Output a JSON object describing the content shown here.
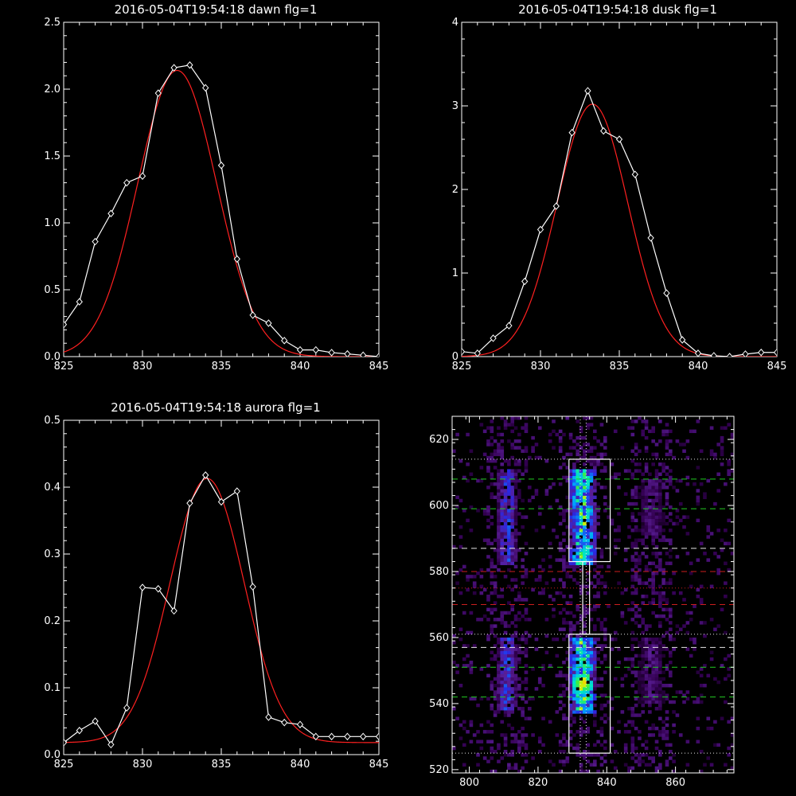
{
  "colors": {
    "background": "#000000",
    "axis": "#ffffff",
    "data": "#ffffff",
    "fit": "#ff2020",
    "green": "#22cc22",
    "red": "#cc1e1e",
    "dotted": "#e6e6e6"
  },
  "chart_data": [
    {
      "type": "line",
      "title": "2016-05-04T19:54:18 dawn flg=1",
      "xlim": [
        825,
        845
      ],
      "ylim": [
        0,
        2.5
      ],
      "xticks": [
        825,
        830,
        835,
        840,
        845
      ],
      "yticks": [
        0.0,
        0.5,
        1.0,
        1.5,
        2.0,
        2.5
      ],
      "ytick_labels": [
        "0.0",
        "0.5",
        "1.0",
        "1.5",
        "2.0",
        "2.5"
      ],
      "series": [
        {
          "role": "measured",
          "style": "white line with diamonds",
          "x": [
            825,
            826,
            827,
            828,
            829,
            830,
            831,
            832,
            833,
            834,
            835,
            836,
            837,
            838,
            839,
            840,
            841,
            842,
            843,
            844,
            845
          ],
          "y": [
            0.24,
            0.41,
            0.86,
            1.07,
            1.3,
            1.35,
            1.97,
            2.16,
            2.18,
            2.01,
            1.43,
            0.73,
            0.31,
            0.25,
            0.12,
            0.05,
            0.05,
            0.03,
            0.02,
            0.01,
            0.0
          ]
        },
        {
          "role": "fit",
          "style": "red gaussian",
          "amplitude": 2.14,
          "center": 832.2,
          "sigma": 2.5
        }
      ]
    },
    {
      "type": "line",
      "title": "2016-05-04T19:54:18 dusk flg=1",
      "xlim": [
        825,
        845
      ],
      "ylim": [
        0,
        4
      ],
      "xticks": [
        825,
        830,
        835,
        840,
        845
      ],
      "yticks": [
        0,
        1,
        2,
        3,
        4
      ],
      "ytick_labels": [
        "0",
        "1",
        "2",
        "3",
        "4"
      ],
      "series": [
        {
          "role": "measured",
          "style": "white line with diamonds",
          "x": [
            825,
            826,
            827,
            828,
            829,
            830,
            831,
            832,
            833,
            834,
            835,
            836,
            837,
            838,
            839,
            840,
            841,
            842,
            843,
            844,
            845
          ],
          "y": [
            0.06,
            0.04,
            0.22,
            0.37,
            0.9,
            1.52,
            1.8,
            2.68,
            3.18,
            2.7,
            2.6,
            2.18,
            1.42,
            0.76,
            0.2,
            0.04,
            0.01,
            0.0,
            0.03,
            0.05,
            0.05
          ]
        },
        {
          "role": "fit",
          "style": "red gaussian",
          "amplitude": 3.02,
          "center": 833.3,
          "sigma": 2.25
        }
      ]
    },
    {
      "type": "line",
      "title": "2016-05-04T19:54:18 aurora flg=1",
      "xlim": [
        825,
        845
      ],
      "ylim": [
        0,
        0.5
      ],
      "xticks": [
        825,
        830,
        835,
        840,
        845
      ],
      "yticks": [
        0.0,
        0.1,
        0.2,
        0.3,
        0.4,
        0.5
      ],
      "ytick_labels": [
        "0.0",
        "0.1",
        "0.2",
        "0.3",
        "0.4",
        "0.5"
      ],
      "series": [
        {
          "role": "measured",
          "style": "white line with diamonds",
          "x": [
            825,
            826,
            827,
            828,
            829,
            830,
            831,
            832,
            833,
            834,
            835,
            836,
            837,
            838,
            839,
            840,
            841,
            842,
            843,
            844,
            845
          ],
          "y": [
            0.018,
            0.036,
            0.05,
            0.015,
            0.07,
            0.25,
            0.248,
            0.215,
            0.376,
            0.418,
            0.378,
            0.394,
            0.251,
            0.056,
            0.048,
            0.045,
            0.027,
            0.027,
            0.027,
            0.027,
            0.027
          ]
        },
        {
          "role": "fit",
          "style": "red gaussian",
          "amplitude": 0.395,
          "center": 834.1,
          "sigma": 2.35,
          "offset": 0.018
        }
      ]
    },
    {
      "type": "heatmap",
      "title": "",
      "xlim": [
        795,
        877
      ],
      "ylim": [
        519,
        627
      ],
      "xticks": [
        800,
        820,
        840,
        860
      ],
      "yticks": [
        520,
        540,
        560,
        580,
        600,
        620
      ],
      "colormap": "black-purple-blue-cyan-green-yellow-red",
      "emission_columns": [
        {
          "x_center": 811,
          "x_width": 5,
          "y_ranges": [
            [
              538,
              560
            ],
            [
              582,
              611
            ]
          ],
          "peak": 0.55
        },
        {
          "x_center": 833,
          "x_width": 7,
          "y_ranges": [
            [
              537,
              560
            ],
            [
              582,
              611
            ]
          ],
          "peak": 1.0,
          "hotspot": [
            833,
            546
          ]
        },
        {
          "x_center": 853,
          "x_width": 6,
          "y_ranges": [
            [
              540,
              560
            ],
            [
              590,
              608
            ]
          ],
          "peak": 0.3
        }
      ],
      "boxes": [
        {
          "x": [
            829,
            841
          ],
          "y": [
            525,
            561
          ]
        },
        {
          "x": [
            829,
            841
          ],
          "y": [
            583,
            614
          ]
        }
      ],
      "bridge": {
        "x": [
          833,
          835
        ],
        "y": [
          561,
          583
        ]
      },
      "vertical_dotted": [
        832.3,
        834.0
      ],
      "h_lines": [
        {
          "y": 614,
          "style": "dotted",
          "color": "white"
        },
        {
          "y": 608,
          "style": "dashed",
          "color": "green"
        },
        {
          "y": 599,
          "style": "dashed",
          "color": "green"
        },
        {
          "y": 587,
          "style": "dashed",
          "color": "white"
        },
        {
          "y": 580,
          "style": "dashed",
          "color": "red"
        },
        {
          "y": 575,
          "style": "dotted",
          "color": "red"
        },
        {
          "y": 570,
          "style": "dashed",
          "color": "red"
        },
        {
          "y": 561,
          "style": "dotted",
          "color": "white"
        },
        {
          "y": 557,
          "style": "dashed",
          "color": "white"
        },
        {
          "y": 551,
          "style": "dashed",
          "color": "green"
        },
        {
          "y": 542,
          "style": "dashed",
          "color": "green"
        },
        {
          "y": 525,
          "style": "dotted",
          "color": "white"
        }
      ]
    }
  ]
}
